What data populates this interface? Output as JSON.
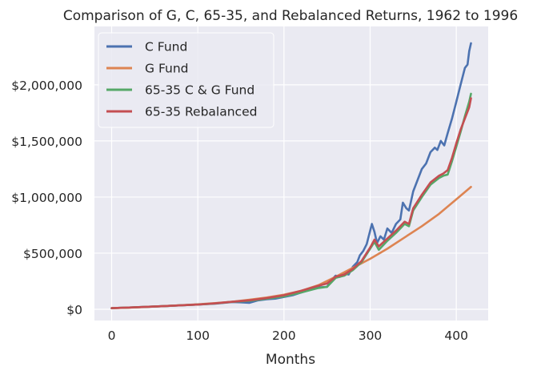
{
  "chart_data": {
    "type": "line",
    "title": "Comparison of G, C, 65-35, and Rebalanced Returns, 1962 to 1996",
    "xlabel": "Months",
    "ylabel": "",
    "xlim": [
      -20,
      437
    ],
    "ylim": [
      -100000,
      2520000
    ],
    "xticks": [
      0,
      100,
      200,
      300,
      400
    ],
    "xtick_labels": [
      "0",
      "100",
      "200",
      "300",
      "400"
    ],
    "yticks": [
      0,
      500000,
      1000000,
      1500000,
      2000000
    ],
    "ytick_labels": [
      "$0",
      "$500,000",
      "$1,000,000",
      "$1,500,000",
      "$2,000,000"
    ],
    "grid": true,
    "background": "#eaeaf2",
    "legend_position": "upper-left",
    "series": [
      {
        "name": "C Fund",
        "color": "#4c72b0",
        "points": [
          [
            0,
            10000
          ],
          [
            20,
            16000
          ],
          [
            40,
            22000
          ],
          [
            60,
            28000
          ],
          [
            80,
            35000
          ],
          [
            100,
            42000
          ],
          [
            120,
            50000
          ],
          [
            140,
            65000
          ],
          [
            150,
            62000
          ],
          [
            160,
            58000
          ],
          [
            170,
            80000
          ],
          [
            180,
            90000
          ],
          [
            190,
            95000
          ],
          [
            200,
            110000
          ],
          [
            210,
            125000
          ],
          [
            220,
            150000
          ],
          [
            230,
            175000
          ],
          [
            240,
            195000
          ],
          [
            250,
            200000
          ],
          [
            255,
            260000
          ],
          [
            260,
            300000
          ],
          [
            265,
            290000
          ],
          [
            270,
            320000
          ],
          [
            275,
            310000
          ],
          [
            280,
            380000
          ],
          [
            285,
            420000
          ],
          [
            288,
            480000
          ],
          [
            292,
            520000
          ],
          [
            296,
            580000
          ],
          [
            300,
            700000
          ],
          [
            302,
            760000
          ],
          [
            305,
            690000
          ],
          [
            308,
            590000
          ],
          [
            312,
            650000
          ],
          [
            316,
            620000
          ],
          [
            320,
            720000
          ],
          [
            325,
            680000
          ],
          [
            330,
            760000
          ],
          [
            335,
            800000
          ],
          [
            338,
            950000
          ],
          [
            342,
            900000
          ],
          [
            345,
            880000
          ],
          [
            350,
            1050000
          ],
          [
            355,
            1150000
          ],
          [
            360,
            1250000
          ],
          [
            365,
            1300000
          ],
          [
            370,
            1400000
          ],
          [
            375,
            1440000
          ],
          [
            378,
            1420000
          ],
          [
            382,
            1500000
          ],
          [
            386,
            1460000
          ],
          [
            390,
            1570000
          ],
          [
            395,
            1700000
          ],
          [
            400,
            1850000
          ],
          [
            405,
            2000000
          ],
          [
            410,
            2150000
          ],
          [
            413,
            2180000
          ],
          [
            415,
            2300000
          ],
          [
            417,
            2370000
          ]
        ]
      },
      {
        "name": "G Fund",
        "color": "#dd8452",
        "points": [
          [
            0,
            10000
          ],
          [
            20,
            15000
          ],
          [
            40,
            21000
          ],
          [
            60,
            28000
          ],
          [
            80,
            36000
          ],
          [
            100,
            44000
          ],
          [
            120,
            55000
          ],
          [
            140,
            67000
          ],
          [
            160,
            85000
          ],
          [
            180,
            105000
          ],
          [
            200,
            130000
          ],
          [
            220,
            165000
          ],
          [
            240,
            215000
          ],
          [
            260,
            290000
          ],
          [
            280,
            370000
          ],
          [
            300,
            450000
          ],
          [
            320,
            540000
          ],
          [
            340,
            640000
          ],
          [
            360,
            740000
          ],
          [
            380,
            850000
          ],
          [
            400,
            980000
          ],
          [
            417,
            1090000
          ]
        ]
      },
      {
        "name": "65-35 C & G Fund",
        "color": "#55a868",
        "points": [
          [
            0,
            10000
          ],
          [
            20,
            16000
          ],
          [
            40,
            22000
          ],
          [
            60,
            28000
          ],
          [
            80,
            35000
          ],
          [
            100,
            42000
          ],
          [
            120,
            52000
          ],
          [
            140,
            66000
          ],
          [
            160,
            75000
          ],
          [
            180,
            95000
          ],
          [
            200,
            115000
          ],
          [
            220,
            150000
          ],
          [
            240,
            190000
          ],
          [
            250,
            200000
          ],
          [
            260,
            280000
          ],
          [
            270,
            300000
          ],
          [
            280,
            350000
          ],
          [
            290,
            420000
          ],
          [
            300,
            540000
          ],
          [
            305,
            600000
          ],
          [
            310,
            530000
          ],
          [
            320,
            610000
          ],
          [
            330,
            680000
          ],
          [
            340,
            760000
          ],
          [
            345,
            740000
          ],
          [
            350,
            880000
          ],
          [
            360,
            1000000
          ],
          [
            370,
            1110000
          ],
          [
            380,
            1170000
          ],
          [
            385,
            1190000
          ],
          [
            390,
            1200000
          ],
          [
            395,
            1320000
          ],
          [
            400,
            1450000
          ],
          [
            405,
            1580000
          ],
          [
            410,
            1720000
          ],
          [
            415,
            1850000
          ],
          [
            417,
            1920000
          ]
        ]
      },
      {
        "name": "65-35 Rebalanced",
        "color": "#c44e52",
        "points": [
          [
            0,
            10000
          ],
          [
            20,
            16000
          ],
          [
            40,
            22000
          ],
          [
            60,
            28000
          ],
          [
            80,
            35000
          ],
          [
            100,
            42000
          ],
          [
            120,
            53000
          ],
          [
            140,
            67000
          ],
          [
            160,
            80000
          ],
          [
            180,
            100000
          ],
          [
            200,
            125000
          ],
          [
            220,
            165000
          ],
          [
            240,
            210000
          ],
          [
            250,
            230000
          ],
          [
            260,
            290000
          ],
          [
            270,
            310000
          ],
          [
            280,
            360000
          ],
          [
            290,
            430000
          ],
          [
            300,
            550000
          ],
          [
            305,
            620000
          ],
          [
            310,
            560000
          ],
          [
            320,
            630000
          ],
          [
            330,
            700000
          ],
          [
            340,
            780000
          ],
          [
            345,
            760000
          ],
          [
            350,
            900000
          ],
          [
            360,
            1020000
          ],
          [
            370,
            1130000
          ],
          [
            380,
            1190000
          ],
          [
            385,
            1210000
          ],
          [
            390,
            1240000
          ],
          [
            395,
            1350000
          ],
          [
            400,
            1480000
          ],
          [
            405,
            1600000
          ],
          [
            410,
            1700000
          ],
          [
            415,
            1800000
          ],
          [
            417,
            1880000
          ]
        ]
      }
    ]
  }
}
